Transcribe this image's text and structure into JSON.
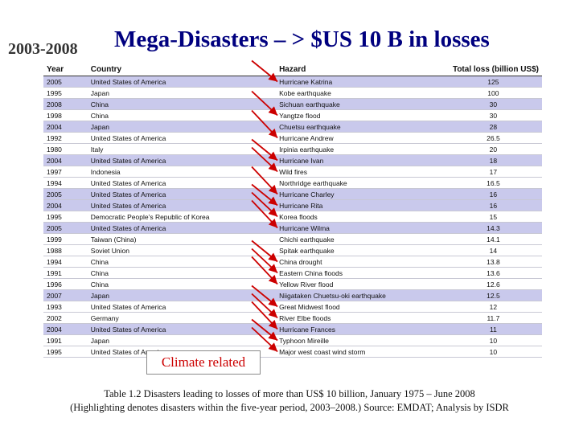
{
  "header": {
    "period": "2003-2008",
    "title": "Mega-Disasters – > $US 10 B in losses"
  },
  "table": {
    "columns": [
      "Year",
      "Country",
      "Hazard",
      "Total loss (billion US$)"
    ],
    "rows": [
      {
        "year": "2005",
        "country": "United States of America",
        "hazard": "Hurricane Katrina",
        "loss": "125",
        "highlight": true
      },
      {
        "year": "1995",
        "country": "Japan",
        "hazard": "Kobe earthquake",
        "loss": "100",
        "highlight": false
      },
      {
        "year": "2008",
        "country": "China",
        "hazard": "Sichuan earthquake",
        "loss": "30",
        "highlight": true
      },
      {
        "year": "1998",
        "country": "China",
        "hazard": "Yangtze flood",
        "loss": "30",
        "highlight": false
      },
      {
        "year": "2004",
        "country": "Japan",
        "hazard": "Chuetsu earthquake",
        "loss": "28",
        "highlight": true
      },
      {
        "year": "1992",
        "country": "United States of America",
        "hazard": "Hurricane Andrew",
        "loss": "26.5",
        "highlight": false
      },
      {
        "year": "1980",
        "country": "Italy",
        "hazard": "Irpinia earthquake",
        "loss": "20",
        "highlight": false
      },
      {
        "year": "2004",
        "country": "United States of America",
        "hazard": "Hurricane Ivan",
        "loss": "18",
        "highlight": true
      },
      {
        "year": "1997",
        "country": "Indonesia",
        "hazard": "Wild fires",
        "loss": "17",
        "highlight": false
      },
      {
        "year": "1994",
        "country": "United States of America",
        "hazard": "Northridge earthquake",
        "loss": "16.5",
        "highlight": false
      },
      {
        "year": "2005",
        "country": "United States of America",
        "hazard": "Hurricane Charley",
        "loss": "16",
        "highlight": true
      },
      {
        "year": "2004",
        "country": "United States of America",
        "hazard": "Hurricane Rita",
        "loss": "16",
        "highlight": true
      },
      {
        "year": "1995",
        "country": "Democratic People’s Republic of Korea",
        "hazard": "Korea floods",
        "loss": "15",
        "highlight": false
      },
      {
        "year": "2005",
        "country": "United States of America",
        "hazard": "Hurricane Wilma",
        "loss": "14.3",
        "highlight": true
      },
      {
        "year": "1999",
        "country": "Taiwan (China)",
        "hazard": "Chichi earthquake",
        "loss": "14.1",
        "highlight": false
      },
      {
        "year": "1988",
        "country": "Soviet Union",
        "hazard": "Spitak earthquake",
        "loss": "14",
        "highlight": false
      },
      {
        "year": "1994",
        "country": "China",
        "hazard": "China drought",
        "loss": "13.8",
        "highlight": false
      },
      {
        "year": "1991",
        "country": "China",
        "hazard": "Eastern China floods",
        "loss": "13.6",
        "highlight": false
      },
      {
        "year": "1996",
        "country": "China",
        "hazard": "Yellow River flood",
        "loss": "12.6",
        "highlight": false
      },
      {
        "year": "2007",
        "country": "Japan",
        "hazard": "Niigataken Chuetsu-oki earthquake",
        "loss": "12.5",
        "highlight": true
      },
      {
        "year": "1993",
        "country": "United States of America",
        "hazard": "Great Midwest flood",
        "loss": "12",
        "highlight": false
      },
      {
        "year": "2002",
        "country": "Germany",
        "hazard": "River Elbe floods",
        "loss": "11.7",
        "highlight": false
      },
      {
        "year": "2004",
        "country": "United States of America",
        "hazard": "Hurricane Frances",
        "loss": "11",
        "highlight": true
      },
      {
        "year": "1991",
        "country": "Japan",
        "hazard": "Typhoon Mireille",
        "loss": "10",
        "highlight": false
      },
      {
        "year": "1995",
        "country": "United States of America",
        "hazard": "Major west coast wind storm",
        "loss": "10",
        "highlight": false
      }
    ]
  },
  "annotation": {
    "label": "Climate related",
    "arrow_color": "#cc0000",
    "arrow_rows": [
      0,
      3,
      5,
      7,
      8,
      10,
      11,
      12,
      13,
      16,
      17,
      18,
      20,
      21,
      22,
      23,
      24
    ]
  },
  "caption": {
    "line1": "Table 1.2 Disasters leading to losses of more than US$ 10 billion, January 1975 – June 2008",
    "line2": "(Highlighting denotes disasters within the five-year period, 2003–2008.) Source: EMDAT; Analysis by ISDR"
  },
  "colors": {
    "title": "#00007f",
    "highlight_row": "#c9c9ec",
    "annotation_text": "#cc0000"
  }
}
